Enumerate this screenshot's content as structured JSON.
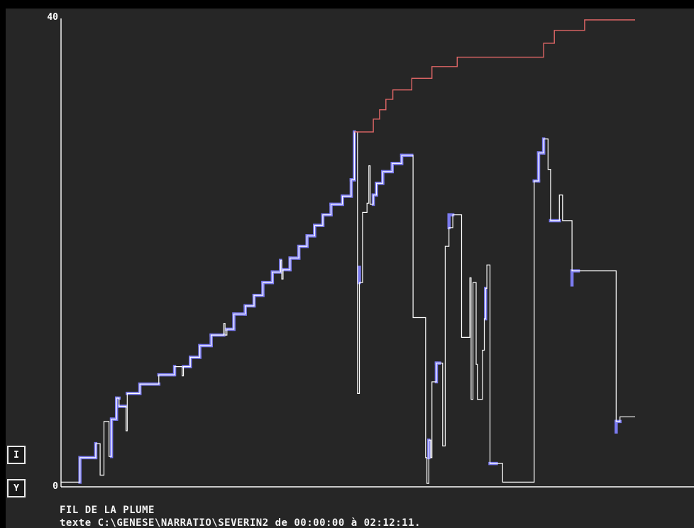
{
  "side_buttons": {
    "i_label": "I",
    "y_label": "Y"
  },
  "footer": {
    "title": "FIL DE LA PLUME",
    "subtitle": "texte C:\\GENESE\\NARRATIO\\SEVERIN2 de 00:00:00 à 02:12:11."
  },
  "colors": {
    "background": "#262626",
    "axis": "#ffffff",
    "trace": "#ffffff",
    "envelope": "#e06666",
    "highlight": "#7b7bf0"
  },
  "chart_data": {
    "type": "line",
    "title": "",
    "xlabel": "",
    "ylabel": "",
    "ylim": [
      0,
      40
    ],
    "xlim": [
      0,
      100
    ],
    "y_tick_labels": [
      "0",
      "40"
    ],
    "grid": false,
    "series": [
      {
        "role": "trace",
        "points": [
          [
            0,
            0.4
          ],
          [
            3,
            0.4
          ],
          [
            3,
            2.5
          ],
          [
            5.5,
            2.5
          ],
          [
            5.5,
            3.7
          ],
          [
            6.2,
            3.7
          ],
          [
            6.2,
            1.0
          ],
          [
            6.8,
            1.0
          ],
          [
            6.8,
            5.6
          ],
          [
            7.6,
            5.6
          ],
          [
            7.6,
            2.6
          ],
          [
            8.0,
            2.6
          ],
          [
            8.0,
            5.8
          ],
          [
            8.8,
            5.8
          ],
          [
            8.8,
            7.6
          ],
          [
            9.2,
            7.6
          ],
          [
            9.2,
            6.9
          ],
          [
            10.3,
            6.9
          ],
          [
            10.3,
            4.8
          ],
          [
            10.5,
            4.8
          ],
          [
            10.5,
            8.0
          ],
          [
            12.5,
            8.0
          ],
          [
            12.5,
            8.8
          ],
          [
            15.5,
            8.8
          ],
          [
            15.5,
            9.6
          ],
          [
            18.0,
            9.6
          ],
          [
            18.0,
            10.3
          ],
          [
            19.2,
            10.3
          ],
          [
            19.2,
            9.5
          ],
          [
            19.4,
            9.5
          ],
          [
            19.4,
            10.3
          ],
          [
            20.5,
            10.3
          ],
          [
            20.5,
            11.1
          ],
          [
            22.0,
            11.1
          ],
          [
            22.0,
            12.1
          ],
          [
            23.8,
            12.1
          ],
          [
            23.8,
            13.0
          ],
          [
            25.8,
            13.0
          ],
          [
            25.8,
            14.0
          ],
          [
            26.0,
            14.0
          ],
          [
            26.0,
            13.0
          ],
          [
            26.3,
            13.0
          ],
          [
            26.3,
            13.5
          ],
          [
            27.4,
            13.5
          ],
          [
            27.4,
            14.8
          ],
          [
            29.2,
            14.8
          ],
          [
            29.2,
            15.5
          ],
          [
            30.6,
            15.5
          ],
          [
            30.6,
            16.4
          ],
          [
            32.0,
            16.4
          ],
          [
            32.0,
            17.5
          ],
          [
            33.5,
            17.5
          ],
          [
            33.5,
            18.4
          ],
          [
            34.8,
            18.4
          ],
          [
            34.8,
            19.4
          ],
          [
            35.0,
            19.4
          ],
          [
            35.0,
            17.8
          ],
          [
            35.2,
            17.8
          ],
          [
            35.2,
            18.6
          ],
          [
            36.3,
            18.6
          ],
          [
            36.3,
            19.6
          ],
          [
            37.7,
            19.6
          ],
          [
            37.7,
            20.6
          ],
          [
            39.0,
            20.6
          ],
          [
            39.0,
            21.5
          ],
          [
            40.2,
            21.5
          ],
          [
            40.2,
            22.4
          ],
          [
            41.5,
            22.4
          ],
          [
            41.5,
            23.3
          ],
          [
            42.8,
            23.3
          ],
          [
            42.8,
            24.2
          ],
          [
            44.6,
            24.2
          ],
          [
            44.6,
            24.9
          ],
          [
            46.0,
            24.9
          ],
          [
            46.0,
            26.3
          ],
          [
            46.5,
            26.3
          ],
          [
            46.5,
            30.4
          ],
          [
            47.0,
            30.4
          ],
          [
            47.0,
            8.0
          ],
          [
            47.3,
            8.0
          ],
          [
            47.3,
            17.5
          ],
          [
            47.8,
            17.5
          ],
          [
            47.8,
            23.5
          ],
          [
            48.5,
            23.5
          ],
          [
            48.5,
            24.3
          ],
          [
            48.8,
            24.3
          ],
          [
            48.8,
            27.5
          ],
          [
            49.0,
            27.5
          ],
          [
            49.0,
            24.2
          ],
          [
            49.5,
            24.2
          ],
          [
            49.5,
            25.0
          ],
          [
            50.0,
            25.0
          ],
          [
            50.0,
            26.0
          ],
          [
            51.0,
            26.0
          ],
          [
            51.0,
            27.0
          ],
          [
            52.5,
            27.0
          ],
          [
            52.5,
            27.7
          ],
          [
            54.0,
            27.7
          ],
          [
            54.0,
            28.4
          ],
          [
            55.8,
            28.4
          ],
          [
            55.8,
            14.5
          ],
          [
            57.8,
            14.5
          ],
          [
            57.8,
            2.5
          ],
          [
            58.0,
            2.5
          ],
          [
            58.0,
            0.3
          ],
          [
            58.3,
            0.3
          ],
          [
            58.3,
            4.0
          ],
          [
            58.6,
            4.0
          ],
          [
            58.6,
            2.5
          ],
          [
            58.8,
            2.5
          ],
          [
            58.8,
            9.0
          ],
          [
            59.5,
            9.0
          ],
          [
            59.5,
            10.6
          ],
          [
            60.5,
            10.6
          ],
          [
            60.5,
            3.5
          ],
          [
            60.9,
            3.5
          ],
          [
            60.9,
            20.6
          ],
          [
            61.5,
            20.6
          ],
          [
            61.5,
            22.2
          ],
          [
            62.1,
            22.2
          ],
          [
            62.1,
            23.3
          ],
          [
            63.5,
            23.3
          ],
          [
            63.5,
            12.8
          ],
          [
            64.8,
            12.8
          ],
          [
            64.8,
            17.9
          ],
          [
            65.0,
            17.9
          ],
          [
            65.0,
            7.5
          ],
          [
            65.3,
            7.5
          ],
          [
            65.3,
            17.5
          ],
          [
            65.8,
            17.5
          ],
          [
            65.8,
            10.5
          ],
          [
            66.0,
            10.5
          ],
          [
            66.0,
            7.5
          ],
          [
            66.8,
            7.5
          ],
          [
            66.8,
            11.7
          ],
          [
            67.1,
            11.7
          ],
          [
            67.1,
            14.4
          ],
          [
            67.3,
            14.4
          ],
          [
            67.3,
            17.0
          ],
          [
            67.5,
            17.0
          ],
          [
            67.5,
            19.0
          ],
          [
            68.0,
            19.0
          ],
          [
            68.0,
            2.0
          ],
          [
            70.0,
            2.0
          ],
          [
            70.0,
            0.4
          ],
          [
            75.0,
            0.4
          ],
          [
            75.0,
            26.2
          ],
          [
            75.7,
            26.2
          ],
          [
            75.7,
            28.6
          ],
          [
            76.5,
            28.6
          ],
          [
            76.5,
            29.8
          ],
          [
            77.2,
            29.8
          ],
          [
            77.2,
            27.2
          ],
          [
            77.6,
            27.2
          ],
          [
            77.6,
            22.8
          ],
          [
            79.0,
            22.8
          ],
          [
            79.0,
            25.0
          ],
          [
            79.5,
            25.0
          ],
          [
            79.5,
            22.8
          ],
          [
            81.0,
            22.8
          ],
          [
            81.0,
            18.5
          ],
          [
            88.0,
            18.5
          ],
          [
            88.0,
            5.6
          ],
          [
            88.6,
            5.6
          ],
          [
            88.6,
            6.0
          ],
          [
            91.0,
            6.0
          ]
        ]
      },
      {
        "role": "envelope",
        "points": [
          [
            46.5,
            30.4
          ],
          [
            49.5,
            30.4
          ],
          [
            49.5,
            31.5
          ],
          [
            50.5,
            31.5
          ],
          [
            50.5,
            32.3
          ],
          [
            51.5,
            32.3
          ],
          [
            51.5,
            33.2
          ],
          [
            52.6,
            33.2
          ],
          [
            52.6,
            34.0
          ],
          [
            55.6,
            34.0
          ],
          [
            55.6,
            35.0
          ],
          [
            58.8,
            35.0
          ],
          [
            58.8,
            36.0
          ],
          [
            62.8,
            36.0
          ],
          [
            62.8,
            36.8
          ],
          [
            76.5,
            36.8
          ],
          [
            76.5,
            38.0
          ],
          [
            78.2,
            38.0
          ],
          [
            78.2,
            39.1
          ],
          [
            83.0,
            39.1
          ],
          [
            83.0,
            40.0
          ],
          [
            91.0,
            40.0
          ]
        ]
      },
      {
        "role": "highlight",
        "segments": [
          [
            3.0,
            0.4,
            3.0,
            2.5
          ],
          [
            3.0,
            2.5,
            5.5,
            2.5
          ],
          [
            5.5,
            2.5,
            5.5,
            3.7
          ],
          [
            8.0,
            5.8,
            8.0,
            2.6
          ],
          [
            8.0,
            5.8,
            8.8,
            5.8
          ],
          [
            8.8,
            5.8,
            8.8,
            7.6
          ],
          [
            8.8,
            7.6,
            9.2,
            7.6
          ],
          [
            9.2,
            6.9,
            10.3,
            6.9
          ],
          [
            10.5,
            8.0,
            12.5,
            8.0
          ],
          [
            12.5,
            8.0,
            12.5,
            8.8
          ],
          [
            12.5,
            8.8,
            15.5,
            8.8
          ],
          [
            15.5,
            9.6,
            17.8,
            9.6
          ],
          [
            18.0,
            9.6,
            18.0,
            10.3
          ],
          [
            19.4,
            10.3,
            20.5,
            10.3
          ],
          [
            20.5,
            10.3,
            20.5,
            11.1
          ],
          [
            20.5,
            11.1,
            22.0,
            11.1
          ],
          [
            22.0,
            11.1,
            22.0,
            12.1
          ],
          [
            22.0,
            12.1,
            23.8,
            12.1
          ],
          [
            23.8,
            12.1,
            23.8,
            13.0
          ],
          [
            23.8,
            13.0,
            25.8,
            13.0
          ],
          [
            26.3,
            13.5,
            27.4,
            13.5
          ],
          [
            27.4,
            13.5,
            27.4,
            14.8
          ],
          [
            27.4,
            14.8,
            29.2,
            14.8
          ],
          [
            29.2,
            14.8,
            29.2,
            15.5
          ],
          [
            29.2,
            15.5,
            30.6,
            15.5
          ],
          [
            30.6,
            15.5,
            30.6,
            16.4
          ],
          [
            30.6,
            16.4,
            32.0,
            16.4
          ],
          [
            32.0,
            16.4,
            32.0,
            17.5
          ],
          [
            32.0,
            17.5,
            33.5,
            17.5
          ],
          [
            33.5,
            17.5,
            33.5,
            18.4
          ],
          [
            33.5,
            18.4,
            34.8,
            18.4
          ],
          [
            34.8,
            18.4,
            34.8,
            19.4
          ],
          [
            35.2,
            18.6,
            36.3,
            18.6
          ],
          [
            36.3,
            18.6,
            36.3,
            19.6
          ],
          [
            36.3,
            19.6,
            37.7,
            19.6
          ],
          [
            37.7,
            19.6,
            37.7,
            20.6
          ],
          [
            37.7,
            20.6,
            39.0,
            20.6
          ],
          [
            39.0,
            20.6,
            39.0,
            21.5
          ],
          [
            39.0,
            21.5,
            40.2,
            21.5
          ],
          [
            40.2,
            21.5,
            40.2,
            22.4
          ],
          [
            40.2,
            22.4,
            41.5,
            22.4
          ],
          [
            41.5,
            22.4,
            41.5,
            23.3
          ],
          [
            41.5,
            23.3,
            42.8,
            23.3
          ],
          [
            42.8,
            23.3,
            42.8,
            24.2
          ],
          [
            42.8,
            24.2,
            44.6,
            24.2
          ],
          [
            44.6,
            24.2,
            44.6,
            24.9
          ],
          [
            44.6,
            24.9,
            46.0,
            24.9
          ],
          [
            46.0,
            24.9,
            46.0,
            26.3
          ],
          [
            46.0,
            26.3,
            46.5,
            26.3
          ],
          [
            46.5,
            26.3,
            46.5,
            30.4
          ],
          [
            47.3,
            17.5,
            47.3,
            18.8
          ],
          [
            49.5,
            24.2,
            49.5,
            25.0
          ],
          [
            49.5,
            25.0,
            50.0,
            25.0
          ],
          [
            50.0,
            25.0,
            50.0,
            26.0
          ],
          [
            50.0,
            26.0,
            51.0,
            26.0
          ],
          [
            51.0,
            26.0,
            51.0,
            27.0
          ],
          [
            51.0,
            27.0,
            52.5,
            27.0
          ],
          [
            52.5,
            27.0,
            52.5,
            27.7
          ],
          [
            52.5,
            27.7,
            54.0,
            27.7
          ],
          [
            54.0,
            27.7,
            54.0,
            28.4
          ],
          [
            54.0,
            28.4,
            55.6,
            28.4
          ],
          [
            58.3,
            4.0,
            58.3,
            2.5
          ],
          [
            59.5,
            9.0,
            59.5,
            10.6
          ],
          [
            59.5,
            10.6,
            60.0,
            10.6
          ],
          [
            61.5,
            22.2,
            61.5,
            23.3
          ],
          [
            61.5,
            23.3,
            62.1,
            23.3
          ],
          [
            67.3,
            14.4,
            67.3,
            17.0
          ],
          [
            68.0,
            2.0,
            69.0,
            2.0
          ],
          [
            75.0,
            26.2,
            75.7,
            26.2
          ],
          [
            75.7,
            26.2,
            75.7,
            28.6
          ],
          [
            75.7,
            28.6,
            76.5,
            28.6
          ],
          [
            76.5,
            28.6,
            76.5,
            29.8
          ],
          [
            77.6,
            22.8,
            79.0,
            22.8
          ],
          [
            81.0,
            18.5,
            81.0,
            17.3
          ],
          [
            81.0,
            18.5,
            82.0,
            18.5
          ],
          [
            88.0,
            5.6,
            88.0,
            4.7
          ],
          [
            88.0,
            5.6,
            88.6,
            5.6
          ]
        ]
      }
    ]
  }
}
